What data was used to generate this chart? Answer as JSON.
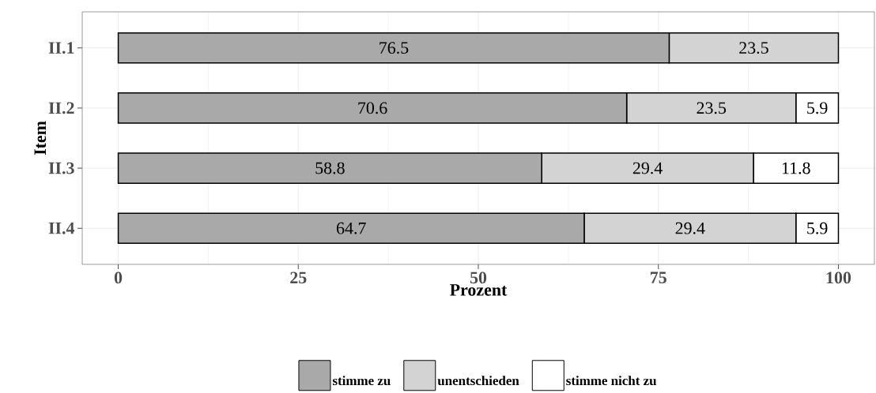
{
  "chart_data": {
    "type": "bar",
    "orientation": "horizontal",
    "stacked": true,
    "xlabel": "Prozent",
    "ylabel": "Item",
    "categories": [
      "II.1",
      "II.2",
      "II.3",
      "II.4"
    ],
    "series": [
      {
        "name": "stimme zu",
        "color": "#a9a9a9",
        "values": [
          76.5,
          70.6,
          58.8,
          64.7
        ]
      },
      {
        "name": "unentschieden",
        "color": "#d3d3d3",
        "values": [
          23.5,
          23.5,
          29.4,
          29.4
        ]
      },
      {
        "name": "stimme nicht zu",
        "color": "#ffffff",
        "values": [
          null,
          5.9,
          11.8,
          5.9
        ]
      }
    ],
    "xlim": [
      -5,
      105
    ],
    "xticks": [
      0,
      25,
      50,
      75,
      100
    ],
    "grid": true,
    "legend": "bottom",
    "data_labels": true
  }
}
